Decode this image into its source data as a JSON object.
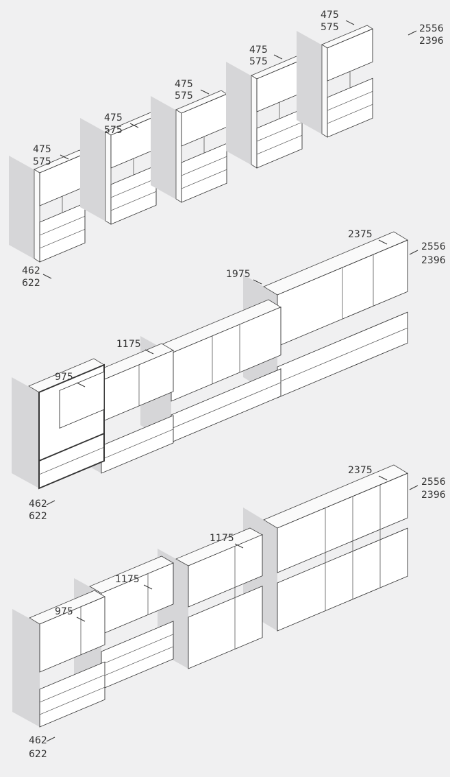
{
  "rows": [
    {
      "modules": [
        {
          "depth": 475,
          "width": 575
        },
        {
          "depth": 475,
          "width": 575
        },
        {
          "depth": 475,
          "width": 575
        },
        {
          "depth": 475,
          "width": 575
        },
        {
          "depth": 475,
          "width": 575
        }
      ],
      "height": {
        "max": 2556,
        "min": 2396
      },
      "base": {
        "depth": 462,
        "width": 622
      }
    },
    {
      "widths": [
        975,
        1175,
        1975,
        2375
      ],
      "height": {
        "max": 2556,
        "min": 2396
      },
      "base": {
        "depth": 462,
        "width": 622
      }
    },
    {
      "widths": [
        975,
        1175,
        1175,
        2375
      ],
      "height": {
        "max": 2556,
        "min": 2396
      },
      "base": {
        "depth": 462,
        "width": 622
      }
    }
  ]
}
